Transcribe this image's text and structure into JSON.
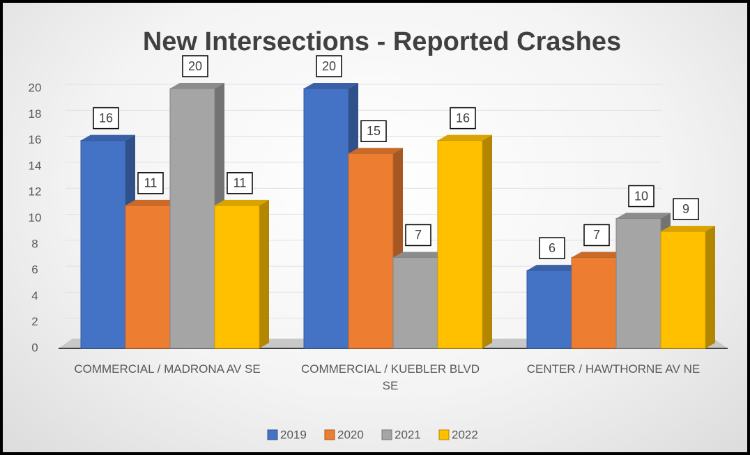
{
  "chart_data": {
    "type": "bar",
    "title": "New Intersections - Reported Crashes",
    "categories": [
      "COMMERCIAL / MADRONA AV SE",
      "COMMERCIAL / KUEBLER BLVD SE",
      "CENTER / HAWTHORNE AV NE"
    ],
    "series": [
      {
        "name": "2019",
        "color": "#4472c4",
        "values": [
          16,
          20,
          6
        ]
      },
      {
        "name": "2020",
        "color": "#ed7d31",
        "values": [
          11,
          15,
          7
        ]
      },
      {
        "name": "2021",
        "color": "#a5a5a5",
        "values": [
          20,
          7,
          10
        ]
      },
      {
        "name": "2022",
        "color": "#ffc000",
        "values": [
          11,
          16,
          9
        ]
      }
    ],
    "ylim": [
      0,
      20
    ],
    "yticks": [
      0,
      2,
      4,
      6,
      8,
      10,
      12,
      14,
      16,
      18,
      20
    ],
    "grid": true,
    "legend": "bottom"
  }
}
